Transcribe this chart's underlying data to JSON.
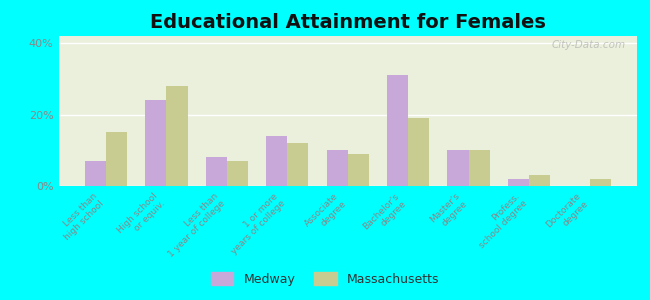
{
  "title": "Educational Attainment for Females",
  "categories": [
    "Less than\nhigh school",
    "High school\nor equiv.",
    "Less than\n1 year of college",
    "1 or more\nyears of college",
    "Associate\ndegree",
    "Bachelor's\ndegree",
    "Master's\ndegree",
    "Profess.\nschool degree",
    "Doctorate\ndegree"
  ],
  "medway": [
    7,
    24,
    8,
    14,
    10,
    31,
    10,
    2,
    0
  ],
  "massachusetts": [
    15,
    28,
    7,
    12,
    9,
    19,
    10,
    3,
    2
  ],
  "medway_color": "#c8a8d8",
  "massachusetts_color": "#c8cc90",
  "bg_top_color": "#d8e8c8",
  "bg_bottom_color": "#f0f5e8",
  "outer_background": "#00ffff",
  "ylim": [
    0,
    42
  ],
  "yticks": [
    0,
    20,
    40
  ],
  "ytick_labels": [
    "0%",
    "20%",
    "40%"
  ],
  "legend_labels": [
    "Medway",
    "Massachusetts"
  ],
  "title_fontsize": 14,
  "bar_width": 0.35,
  "tick_label_fontsize": 6.5,
  "tick_label_color": "#888888"
}
